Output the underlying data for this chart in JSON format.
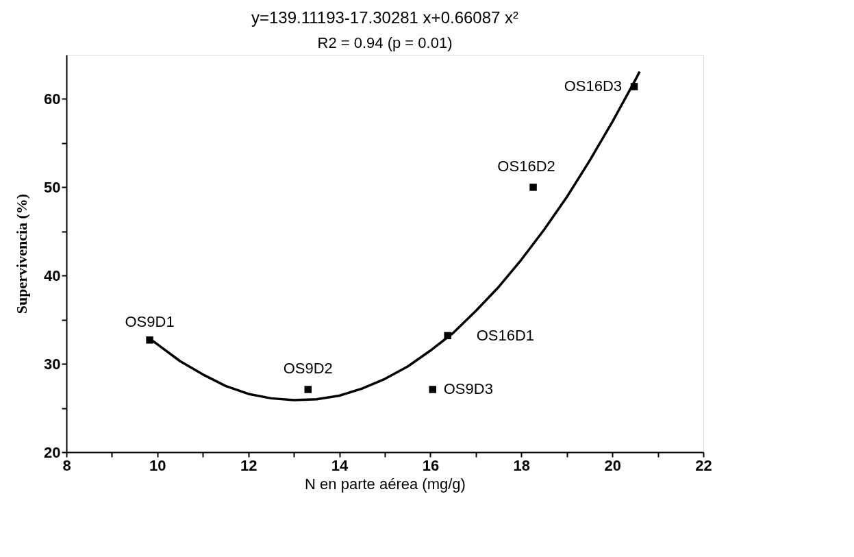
{
  "chart_data": {
    "type": "scatter",
    "title": "y=139.11193-17.30281 x+0.66087 x²",
    "subtitle": "R2 = 0.94 (p = 0.01)",
    "xlabel": "N en parte aérea (mg/g)",
    "ylabel": "Supervivencia (%)",
    "xlim": [
      8,
      22
    ],
    "xticks": [
      8,
      {
        "value": 9,
        "label": null
      },
      10,
      {
        "value": 11,
        "label": null
      },
      12,
      {
        "value": 13,
        "label": null
      },
      14,
      {
        "value": 15,
        "label": null
      },
      16,
      {
        "value": 17,
        "label": null
      },
      18,
      {
        "value": 19,
        "label": null
      },
      20,
      {
        "value": 21,
        "label": null
      },
      22
    ],
    "ylim": [
      20,
      65
    ],
    "yticks": [
      20,
      {
        "value": 25,
        "label": null
      },
      30,
      {
        "value": 35,
        "label": null
      },
      40,
      {
        "value": 45,
        "label": null
      },
      50,
      {
        "value": 55,
        "label": null
      },
      60
    ],
    "grid": false,
    "series": [
      {
        "type": "scatter",
        "marker": "square",
        "color": "#000000",
        "x": [
          9.83,
          13.31,
          16.05,
          16.38,
          18.26,
          20.48
        ],
        "values": [
          32.7,
          27.1,
          27.1,
          33.2,
          50.0,
          61.4
        ]
      },
      {
        "type": "line",
        "marker": "none",
        "line_style": "solid",
        "color": "#000000",
        "x": [
          9.9,
          10.5,
          11,
          11.5,
          12,
          12.5,
          13,
          13.5,
          14,
          14.5,
          15,
          15.5,
          16,
          16.5,
          17,
          17.5,
          18,
          18.5,
          19,
          19.5,
          20,
          20.5,
          20.6
        ],
        "values": [
          32.6,
          30.3,
          28.8,
          27.5,
          26.6,
          26.1,
          25.9,
          26.0,
          26.4,
          27.2,
          28.3,
          29.7,
          31.5,
          33.5,
          36.0,
          38.7,
          41.8,
          45.2,
          48.9,
          53.0,
          57.4,
          62.1,
          63.1
        ]
      }
    ],
    "annotations": [
      {
        "text": "OS9D1",
        "x": 9.83,
        "y": 32.7
      },
      {
        "text": "OS9D2",
        "x": 13.31,
        "y": 27.1
      },
      {
        "text": "OS9D3",
        "x": 16.05,
        "y": 27.1
      },
      {
        "text": "OS16D1",
        "x": 16.38,
        "y": 33.2
      },
      {
        "text": "OS16D2",
        "x": 18.26,
        "y": 50.0
      },
      {
        "text": "OS16D3",
        "x": 20.48,
        "y": 61.4
      }
    ]
  }
}
